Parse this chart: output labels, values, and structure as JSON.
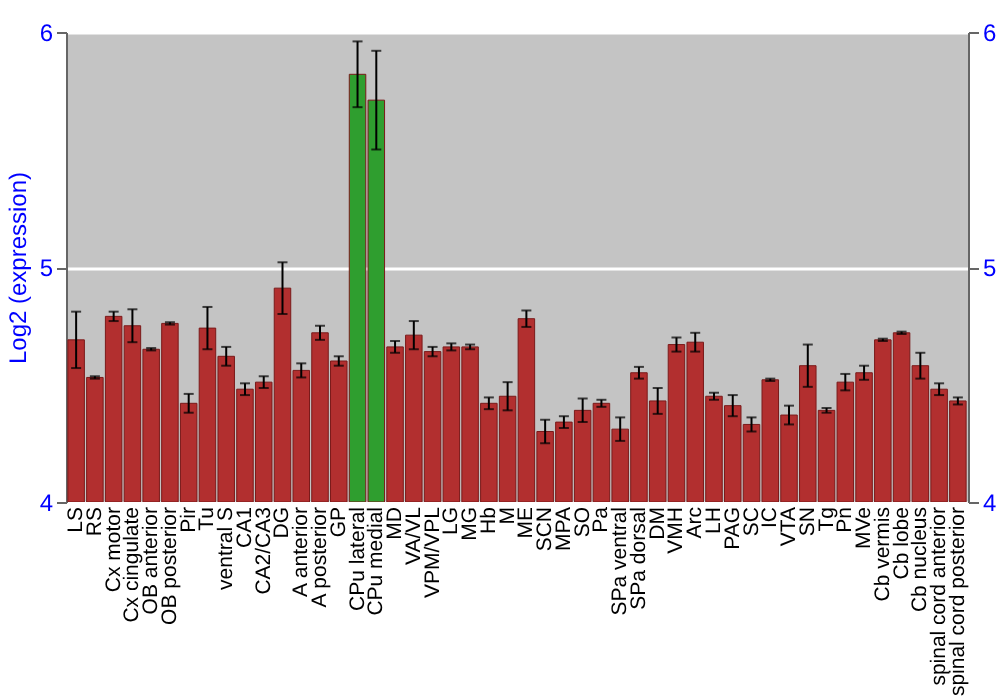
{
  "chart_data": {
    "type": "bar",
    "ylabel": "Log2 (expression)",
    "categories": [
      "LS",
      "RS",
      "Cx motor",
      "Cx cingulate",
      "OB anterior",
      "OB posterior",
      "Pir",
      "Tu",
      "ventral S",
      "CA1",
      "CA2/CA3",
      "DG",
      "A anterior",
      "A posterior",
      "GP",
      "CPu lateral",
      "CPu medial",
      "MD",
      "VA/VL",
      "VPM/VPL",
      "LG",
      "MG",
      "Hb",
      "M",
      "ME",
      "SCN",
      "MPA",
      "SO",
      "Pa",
      "SPa ventral",
      "SPa dorsal",
      "DM",
      "VMH",
      "Arc",
      "LH",
      "PAG",
      "SC",
      "IC",
      "VTA",
      "SN",
      "Tg",
      "Pn",
      "MVe",
      "Cb vermis",
      "Cb lobe",
      "Cb nucleus",
      "spinal cord anterior",
      "spinal cord posterior"
    ],
    "values": [
      4.69,
      4.53,
      4.79,
      4.75,
      4.65,
      4.76,
      4.42,
      4.74,
      4.62,
      4.48,
      4.51,
      4.91,
      4.56,
      4.72,
      4.6,
      5.82,
      5.71,
      4.66,
      4.71,
      4.64,
      4.66,
      4.66,
      4.42,
      4.45,
      4.78,
      4.3,
      4.34,
      4.39,
      4.42,
      4.31,
      4.55,
      4.43,
      4.67,
      4.68,
      4.45,
      4.41,
      4.33,
      4.52,
      4.37,
      4.58,
      4.39,
      4.51,
      4.55,
      4.69,
      4.72,
      4.58,
      4.48,
      4.43
    ],
    "errors": [
      0.12,
      0.005,
      0.02,
      0.07,
      0.005,
      0.005,
      0.04,
      0.09,
      0.04,
      0.025,
      0.025,
      0.11,
      0.03,
      0.03,
      0.02,
      0.14,
      0.21,
      0.025,
      0.06,
      0.02,
      0.015,
      0.01,
      0.025,
      0.06,
      0.035,
      0.05,
      0.025,
      0.05,
      0.015,
      0.05,
      0.025,
      0.055,
      0.03,
      0.04,
      0.015,
      0.045,
      0.03,
      0.005,
      0.04,
      0.09,
      0.01,
      0.035,
      0.03,
      0.005,
      0.005,
      0.055,
      0.025,
      0.015
    ],
    "colors": [
      "#b22f2f",
      "#b22f2f",
      "#b22f2f",
      "#b22f2f",
      "#b22f2f",
      "#b22f2f",
      "#b22f2f",
      "#b22f2f",
      "#b22f2f",
      "#b22f2f",
      "#b22f2f",
      "#b22f2f",
      "#b22f2f",
      "#b22f2f",
      "#b22f2f",
      "#2f9e2f",
      "#2f9e2f",
      "#b22f2f",
      "#b22f2f",
      "#b22f2f",
      "#b22f2f",
      "#b22f2f",
      "#b22f2f",
      "#b22f2f",
      "#b22f2f",
      "#b22f2f",
      "#b22f2f",
      "#b22f2f",
      "#b22f2f",
      "#b22f2f",
      "#b22f2f",
      "#b22f2f",
      "#b22f2f",
      "#b22f2f",
      "#b22f2f",
      "#b22f2f",
      "#b22f2f",
      "#b22f2f",
      "#b22f2f",
      "#b22f2f",
      "#b22f2f",
      "#b22f2f",
      "#b22f2f",
      "#b22f2f",
      "#b22f2f",
      "#b22f2f",
      "#b22f2f",
      "#b22f2f"
    ],
    "ylim": [
      4,
      6
    ],
    "yticks": [
      4,
      5,
      6
    ],
    "y2lim": [
      4,
      6
    ],
    "y2ticks": [
      4,
      5,
      6
    ],
    "grid": "y"
  }
}
